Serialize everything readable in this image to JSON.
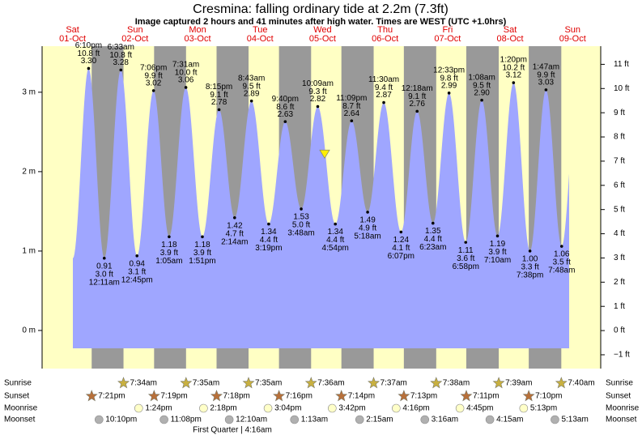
{
  "title": "Cresmina: falling  ordinary tide at 2.2m (7.3ft)",
  "subtitle": "Image captured 2 hours and 41 minutes after high water. Times are WEST (UTC +1.0hrs)",
  "chart_data": {
    "type": "tide",
    "days": [
      "Sat",
      "Sun",
      "Mon",
      "Tue",
      "Wed",
      "Thu",
      "Fri",
      "Sat",
      "Sun"
    ],
    "dates": [
      "01-Oct",
      "02-Oct",
      "03-Oct",
      "04-Oct",
      "05-Oct",
      "06-Oct",
      "07-Oct",
      "08-Oct",
      "09-Oct"
    ],
    "x": [
      "6:10pm",
      "12:11am",
      "6:33am",
      "12:45pm",
      "7:06pm",
      "1:05am",
      "7:31am",
      "1:51pm",
      "8:15pm",
      "2:14am",
      "8:43am",
      "3:19pm",
      "9:40pm",
      "3:48am",
      "10:09am",
      "4:54pm",
      "11:09pm",
      "5:18am",
      "11:30am",
      "6:07pm",
      "12:18am",
      "6:23am",
      "12:33pm",
      "6:58pm",
      "1:08am",
      "7:10am",
      "1:20pm",
      "7:38pm",
      "1:47am",
      "7:48am"
    ],
    "values": [
      3.3,
      0.91,
      3.28,
      0.94,
      3.02,
      1.18,
      3.06,
      1.18,
      2.78,
      1.42,
      2.89,
      1.34,
      2.63,
      1.53,
      2.82,
      1.34,
      2.64,
      1.49,
      2.87,
      1.24,
      2.76,
      1.35,
      2.99,
      1.11,
      2.9,
      1.19,
      3.12,
      1,
      3.03,
      1.06
    ],
    "value_labels": [
      "3.30",
      "0.91",
      "3.28",
      "0.94",
      "3.02",
      "1.18",
      "3.06",
      "1.18",
      "2.78",
      "1.42",
      "2.89",
      "1.34",
      "2.63",
      "1.53",
      "2.82",
      "1.34",
      "2.64",
      "1.49",
      "2.87",
      "1.24",
      "2.76",
      "1.35",
      "2.99",
      "1.11",
      "2.90",
      "1.19",
      "3.12",
      "1.00",
      "3.03",
      "1.06"
    ],
    "ft_labels": [
      "10.8 ft",
      "3.0 ft",
      "10.8 ft",
      "3.1 ft",
      "9.9 ft",
      "3.9 ft",
      "10.0 ft",
      "3.9 ft",
      "9.1 ft",
      "4.7 ft",
      "9.5 ft",
      "4.4 ft",
      "8.6 ft",
      "5.0 ft",
      "9.3 ft",
      "4.4 ft",
      "8.7 ft",
      "4.9 ft",
      "9.4 ft",
      "4.1 ft",
      "9.1 ft",
      "4.4 ft",
      "9.8 ft",
      "3.6 ft",
      "9.5 ft",
      "3.9 ft",
      "10.2 ft",
      "3.3 ft",
      "9.9 ft",
      "3.5 ft"
    ],
    "ylim": [
      -0.48,
      3.58
    ],
    "yticks": [
      {
        "value": 0,
        "label": "0 m"
      },
      {
        "value": 1,
        "label": "1 m"
      },
      {
        "value": 2,
        "label": "2 m"
      },
      {
        "value": 3,
        "label": "3 m"
      }
    ],
    "y2lim": [
      -1.57,
      11.75
    ],
    "y2ticks": [
      {
        "value": -1,
        "label": "−1 ft"
      },
      {
        "value": 0,
        "label": "0 ft"
      },
      {
        "value": 1,
        "label": "1 ft"
      },
      {
        "value": 2,
        "label": "2 ft"
      },
      {
        "value": 3,
        "label": "3 ft"
      },
      {
        "value": 4,
        "label": "4 ft"
      },
      {
        "value": 5,
        "label": "5 ft"
      },
      {
        "value": 6,
        "label": "6 ft"
      },
      {
        "value": 7,
        "label": "7 ft"
      },
      {
        "value": 8,
        "label": "8 ft"
      },
      {
        "value": 9,
        "label": "9 ft"
      },
      {
        "value": 10,
        "label": "10 ft"
      },
      {
        "value": 11,
        "label": "11 ft"
      }
    ],
    "current_level": 2.2,
    "colors": {
      "water": "#9fa6ff",
      "day": "#ffffc4",
      "night": "#999999",
      "days": "#e00000"
    }
  },
  "astro": {
    "labels": {
      "sunrise": "Sunrise",
      "sunset": "Sunset",
      "moonrise": "Moonrise",
      "moonset": "Moonset"
    },
    "sunrise": [
      null,
      "7:34am",
      "7:35am",
      "7:35am",
      "7:36am",
      "7:37am",
      "7:38am",
      "7:39am",
      "7:40am"
    ],
    "sunset": [
      "7:21pm",
      "7:19pm",
      "7:18pm",
      "7:16pm",
      "7:14pm",
      "7:13pm",
      "7:11pm",
      "7:10pm",
      null
    ],
    "moonrise": [
      null,
      "1:24pm",
      "2:18pm",
      "3:04pm",
      "3:42pm",
      "4:16pm",
      "4:45pm",
      "5:13pm",
      null
    ],
    "moonset": [
      "10:10pm",
      "11:08pm",
      null,
      "12:10am",
      "1:13am",
      "2:15am",
      "3:16am",
      "4:15am",
      "5:13am"
    ],
    "moon_phase": "First Quarter | 4:16am"
  }
}
